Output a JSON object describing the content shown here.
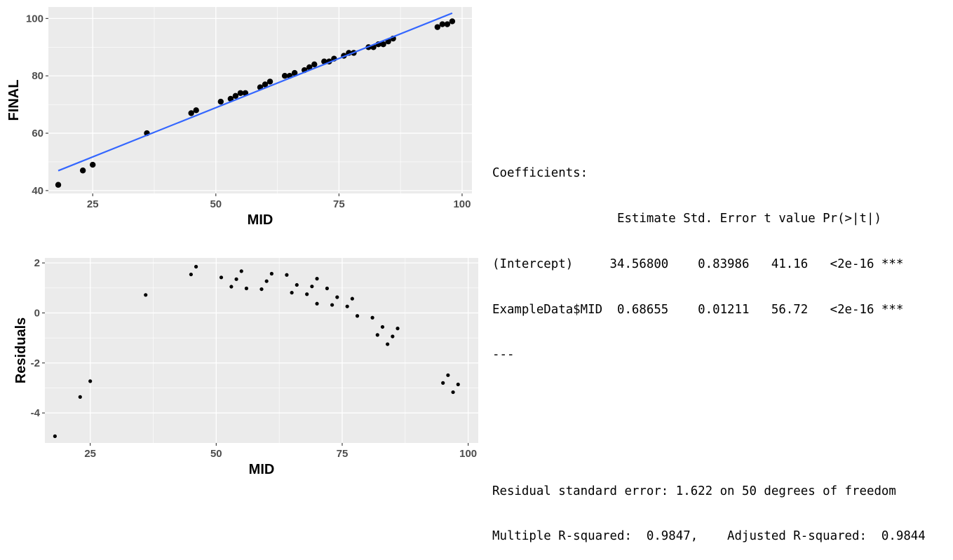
{
  "chart_data": [
    {
      "type": "scatter",
      "xlabel": "MID",
      "ylabel": "FINAL",
      "xlim": [
        16,
        102
      ],
      "ylim": [
        39,
        104
      ],
      "x_ticks": [
        25,
        50,
        75,
        100
      ],
      "y_ticks": [
        40,
        60,
        80,
        100
      ],
      "grid": true,
      "point_color": "#000000",
      "x": [
        18,
        23,
        25,
        36,
        45,
        46,
        51,
        53,
        54,
        55,
        56,
        59,
        60,
        61,
        64,
        65,
        66,
        68,
        69,
        70,
        72,
        73,
        74,
        76,
        77,
        78,
        81,
        82,
        83,
        84,
        85,
        86,
        95,
        96,
        97,
        98
      ],
      "y": [
        42,
        47,
        49,
        60,
        67,
        68,
        71,
        72,
        73,
        74,
        74,
        76,
        77,
        78,
        80,
        80,
        81,
        82,
        83,
        84,
        85,
        85,
        86,
        87,
        88,
        88,
        90,
        90,
        91,
        91,
        92,
        93,
        97,
        98,
        98,
        99
      ],
      "fit_line": {
        "color": "#3366ff",
        "x": [
          18,
          98
        ],
        "y": [
          46.93,
          101.86
        ]
      }
    },
    {
      "type": "scatter",
      "xlabel": "MID",
      "ylabel": "Residuals",
      "xlim": [
        16,
        102
      ],
      "ylim": [
        -5.2,
        2.2
      ],
      "x_ticks": [
        25,
        50,
        75,
        100
      ],
      "y_ticks": [
        -4,
        -2,
        0,
        2
      ],
      "grid": true,
      "point_color": "#000000",
      "x": [
        18,
        23,
        25,
        36,
        45,
        46,
        51,
        53,
        54,
        55,
        56,
        59,
        60,
        61,
        64,
        65,
        66,
        68,
        69,
        70,
        70,
        72,
        73,
        74,
        76,
        77,
        78,
        81,
        82,
        83,
        84,
        85,
        86,
        95,
        96,
        97,
        98
      ],
      "y": [
        -4.93,
        -3.36,
        -2.73,
        0.72,
        1.54,
        1.85,
        1.42,
        1.05,
        1.35,
        1.67,
        0.98,
        0.95,
        1.27,
        1.57,
        1.52,
        0.81,
        1.12,
        0.75,
        1.06,
        1.37,
        0.37,
        0.98,
        0.32,
        0.63,
        0.26,
        0.57,
        -0.12,
        -0.19,
        -0.88,
        -0.56,
        -1.25,
        -0.94,
        -0.62,
        -2.8,
        -2.49,
        -3.17,
        -2.86
      ]
    }
  ],
  "console": {
    "lines": [
      "Coefficients:",
      "                 Estimate Std. Error t value Pr(>|t|)    ",
      "(Intercept)     34.56800    0.83986   41.16   <2e-16 ***",
      "ExampleData$MID  0.68655    0.01211   56.72   <2e-16 ***",
      "---",
      "",
      "",
      "Residual standard error: 1.622 on 50 degrees of freedom",
      "Multiple R-squared:  0.9847,    Adjusted R-squared:  0.9844"
    ]
  }
}
